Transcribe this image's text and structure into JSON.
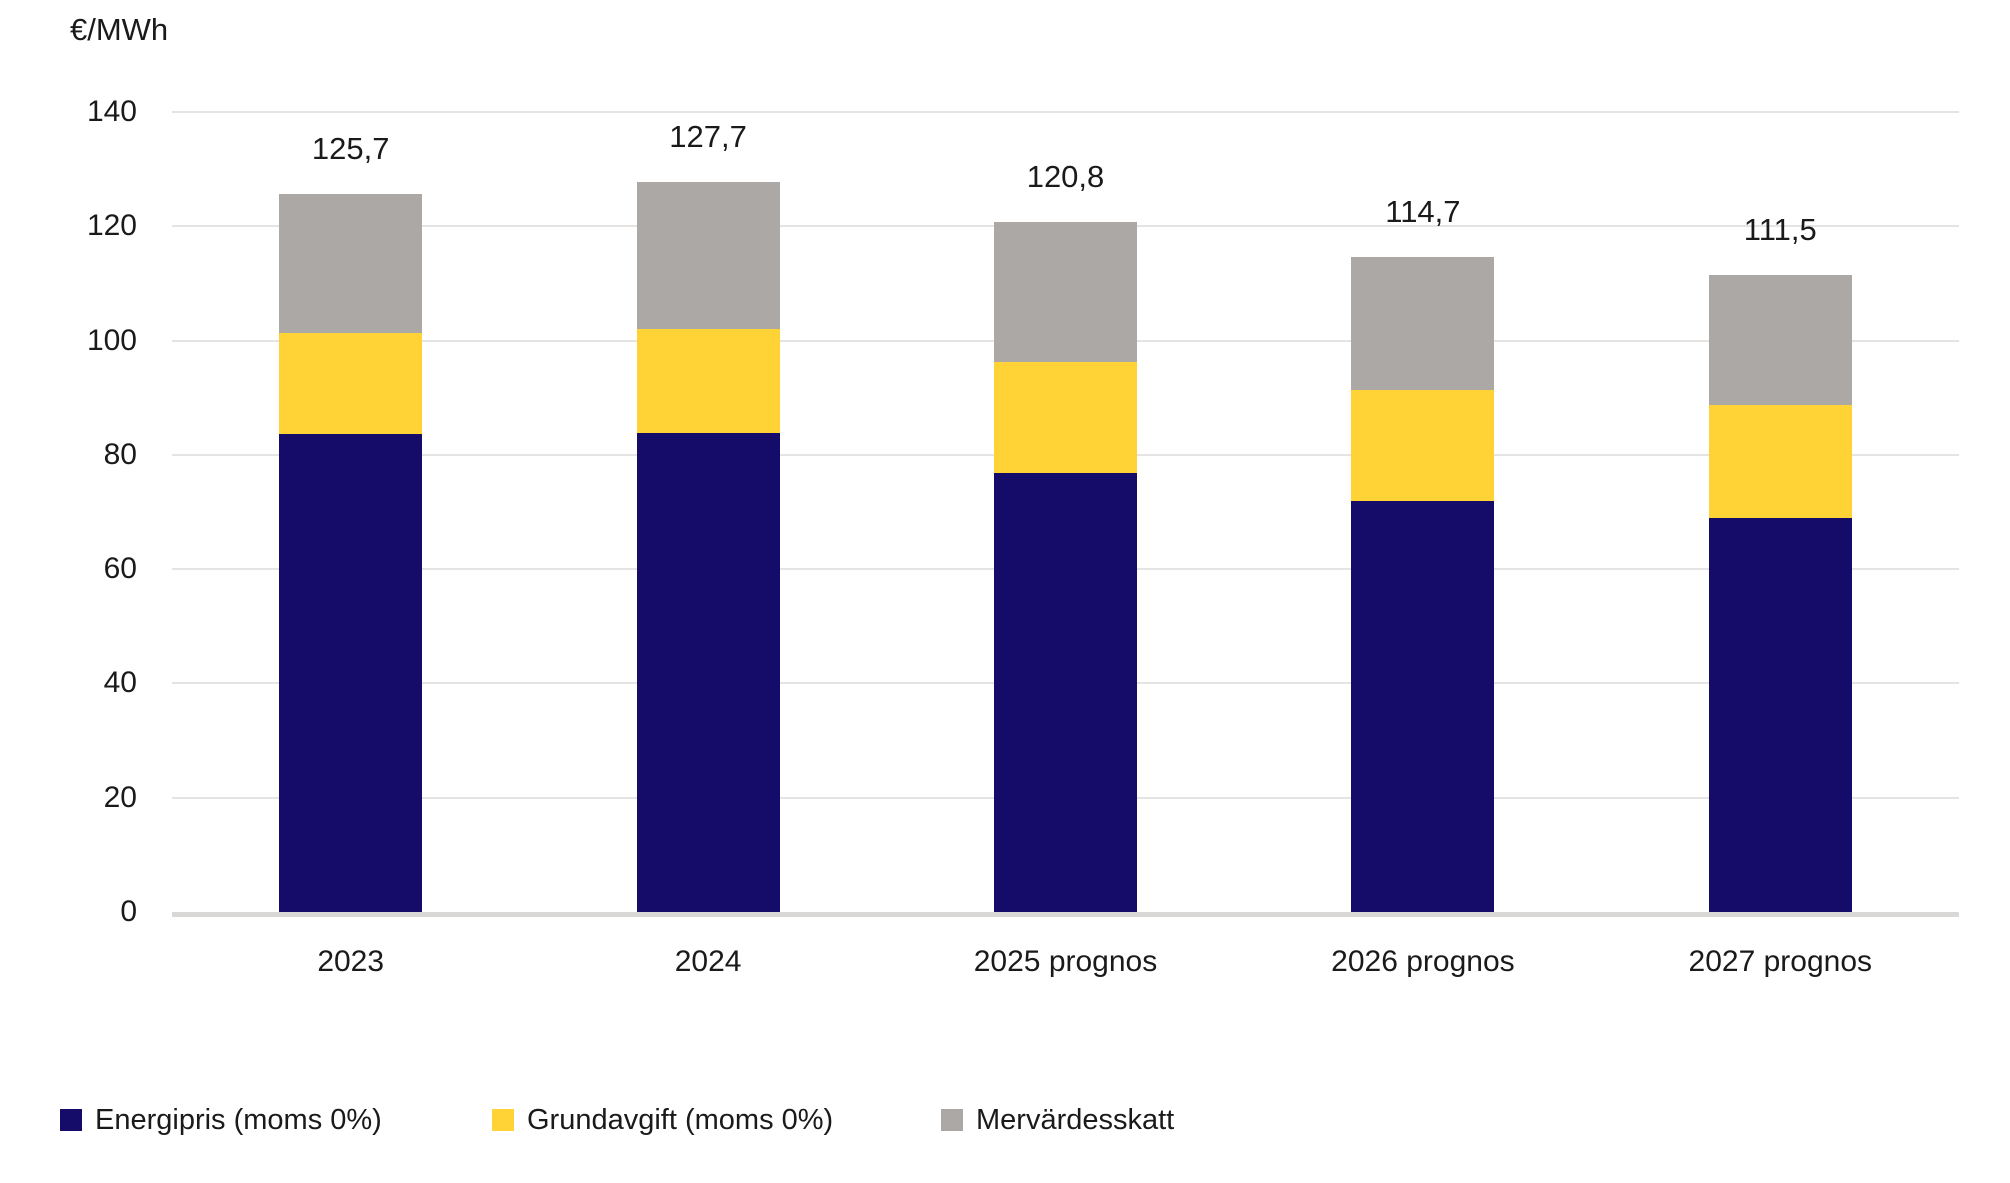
{
  "chart_data": {
    "type": "bar",
    "stacked": true,
    "title": "",
    "ylabel": "€/MWh",
    "xlabel": "",
    "categories": [
      "2023",
      "2024",
      "2025 prognos",
      "2026 prognos",
      "2027 prognos"
    ],
    "series": [
      {
        "name": "Energipris (moms 0%)",
        "color": "#150b69",
        "values": [
          83.6,
          83.9,
          76.9,
          71.9,
          69.0
        ]
      },
      {
        "name": "Grundavgift (moms 0%)",
        "color": "#ffd236",
        "values": [
          17.8,
          18.2,
          19.4,
          19.5,
          19.8
        ]
      },
      {
        "name": "Mervärdesskatt",
        "color": "#aba8a6",
        "values": [
          24.3,
          25.6,
          24.5,
          23.3,
          22.7
        ]
      }
    ],
    "totals": [
      125.7,
      127.7,
      120.8,
      114.7,
      111.5
    ],
    "totals_display": [
      "125,7",
      "127,7",
      "120,8",
      "114,7",
      "111,5"
    ],
    "ylim": [
      0,
      140
    ],
    "yticks": [
      0,
      20,
      40,
      60,
      80,
      100,
      120,
      140
    ],
    "grid": true,
    "legend_position": "bottom-left"
  },
  "style": {
    "background": "#ffffff",
    "text_color": "#1a1a1a",
    "gridline_color": "#e5e4e3",
    "axis_line_color": "#d9d8d6"
  }
}
